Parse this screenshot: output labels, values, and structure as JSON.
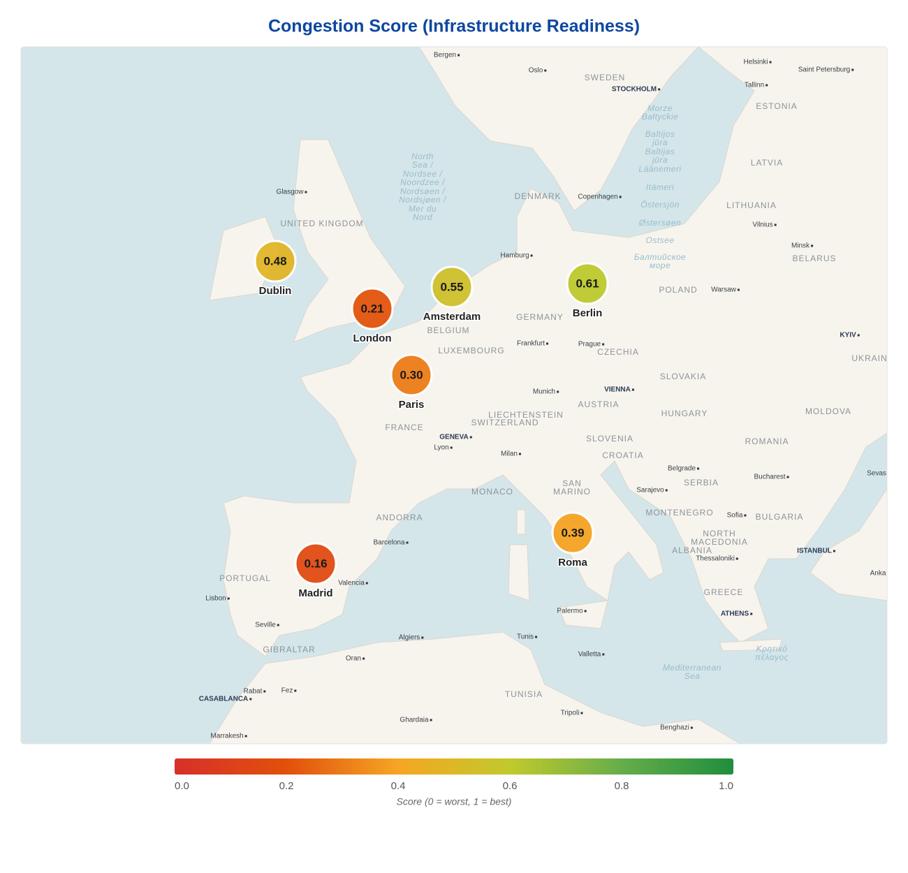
{
  "title": "Congestion Score (Infrastructure Readiness)",
  "markers": {
    "categories": [
      "Dublin",
      "London",
      "Amsterdam",
      "Berlin",
      "Paris",
      "Madrid",
      "Roma"
    ],
    "values": [
      0.48,
      0.21,
      0.55,
      0.61,
      0.3,
      0.16,
      0.39
    ],
    "value_labels": [
      "0.48",
      "0.21",
      "0.55",
      "0.61",
      "0.30",
      "0.16",
      "0.39"
    ]
  },
  "colorbar": {
    "lim": [
      0,
      1
    ],
    "ticks": [
      {
        "value": 0,
        "label": "0.0"
      },
      {
        "value": 0.2,
        "label": "0.2"
      },
      {
        "value": 0.4,
        "label": "0.4"
      },
      {
        "value": 0.6,
        "label": "0.6"
      },
      {
        "value": 0.8,
        "label": "0.8"
      },
      {
        "value": 1,
        "label": "1.0"
      }
    ],
    "colors": [
      "#d7302a",
      "#e2500b",
      "#f5a623",
      "#c2c92c",
      "#66ad4a",
      "#1f8e3d"
    ],
    "label": "Score (0 = worst, 1 = best)"
  },
  "basemap_labels": [
    "Bergen",
    "Oslo",
    "Helsinki",
    "Saint Petersburg",
    "Tallinn",
    "SWEDEN",
    "STOCKHOLM",
    "ESTONIA",
    "LATVIA",
    "LITHUANIA",
    "Vilnius",
    "Minsk",
    "BELARUS",
    "DENMARK",
    "Copenhagen",
    "Glasgow",
    "UNITED KINGDOM",
    "Hamburg",
    "POLAND",
    "Warsaw",
    "GERMANY",
    "BELGIUM",
    "LUXEMBOURG",
    "Frankfurt",
    "Prague",
    "CZECHIA",
    "KYIV",
    "UKRAIN",
    "SLOVAKIA",
    "Munich",
    "VIENNA",
    "AUSTRIA",
    "HUNGARY",
    "MOLDOVA",
    "LIECHTENSTEIN",
    "SWITZERLAND",
    "FRANCE",
    "GENEVA",
    "Lyon",
    "SLOVENIA",
    "CROATIA",
    "ROMANIA",
    "Milan",
    "Belgrade",
    "SERBIA",
    "Bucharest",
    "Sevas",
    "MONACO",
    "SAN",
    "MARINO",
    "Sarajevo",
    "MONTENEGRO",
    "Sofia",
    "BULGARIA",
    "ANDORRA",
    "Barcelona",
    "NORTH",
    "MACEDONIA",
    "ALBANIA",
    "Thessaloniki",
    "ISTANBUL",
    "PORTUGAL",
    "Valencia",
    "Anka",
    "Lisbon",
    "GREECE",
    "Palermo",
    "ATHENS",
    "Seville",
    "Algiers",
    "Tunis",
    "GIBRALTAR",
    "Oran",
    "Valletta",
    "Rabat",
    "Fez",
    "CASABLANCA",
    "TUNISIA",
    "Tripoli",
    "Ghardaia",
    "Marrakesh",
    "Benghazi",
    "North",
    "Sea /",
    "Nordsee /",
    "Noordzee /",
    "Nordsøen /",
    "Nordsjøen /",
    "Mer du",
    "Nord",
    "Morze",
    "Bałtyckie",
    "Baltijos",
    "jūra",
    "Baltijas",
    "jūra",
    "Läänemeri",
    "Itämeri",
    "Östersjön",
    "Østersøen",
    "Ostsee",
    "Балтийское",
    "море",
    "Mediterranean",
    "Sea",
    "Κρητικό",
    "πέλαγος"
  ]
}
